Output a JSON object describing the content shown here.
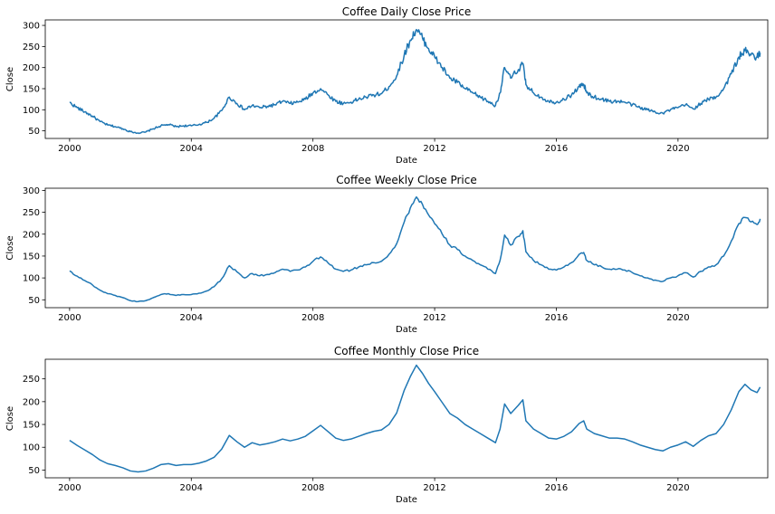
{
  "chart_data": [
    {
      "type": "line",
      "title": "Coffee Daily Close Price",
      "xlabel": "Date",
      "ylabel": "Close",
      "xlim": [
        1999.2,
        2022.95
      ],
      "ylim": [
        32,
        313
      ],
      "xticks": [
        2000,
        2004,
        2008,
        2012,
        2016,
        2020
      ],
      "xtick_labels": [
        "2000",
        "2004",
        "2008",
        "2012",
        "2016",
        "2020"
      ],
      "yticks": [
        50,
        100,
        150,
        200,
        250,
        300
      ],
      "ytick_labels": [
        "50",
        "100",
        "150",
        "200",
        "250",
        "300"
      ],
      "grid": false,
      "color": "#1f77b4",
      "series": [
        {
          "x": [
            2000.0,
            2000.25,
            2000.5,
            2000.75,
            2001.0,
            2001.25,
            2001.5,
            2001.75,
            2002.0,
            2002.25,
            2002.5,
            2002.75,
            2003.0,
            2003.25,
            2003.5,
            2003.75,
            2004.0,
            2004.25,
            2004.5,
            2004.75,
            2005.0,
            2005.25,
            2005.5,
            2005.75,
            2006.0,
            2006.25,
            2006.5,
            2006.75,
            2007.0,
            2007.25,
            2007.5,
            2007.75,
            2008.0,
            2008.25,
            2008.5,
            2008.75,
            2009.0,
            2009.25,
            2009.5,
            2009.75,
            2010.0,
            2010.25,
            2010.5,
            2010.75,
            2011.0,
            2011.2,
            2011.4,
            2011.6,
            2011.8,
            2012.0,
            2012.25,
            2012.5,
            2012.75,
            2013.0,
            2013.25,
            2013.5,
            2013.75,
            2014.0,
            2014.15,
            2014.3,
            2014.5,
            2014.75,
            2014.9,
            2015.0,
            2015.25,
            2015.5,
            2015.75,
            2016.0,
            2016.25,
            2016.5,
            2016.75,
            2016.9,
            2017.0,
            2017.25,
            2017.5,
            2017.75,
            2018.0,
            2018.25,
            2018.5,
            2018.75,
            2019.0,
            2019.25,
            2019.5,
            2019.75,
            2020.0,
            2020.25,
            2020.5,
            2020.75,
            2021.0,
            2021.25,
            2021.5,
            2021.75,
            2022.0,
            2022.2,
            2022.4,
            2022.6,
            2022.7
          ],
          "values": [
            117,
            105,
            95,
            85,
            72,
            64,
            60,
            55,
            48,
            45,
            47,
            55,
            62,
            65,
            60,
            62,
            62,
            65,
            70,
            80,
            98,
            130,
            115,
            100,
            110,
            105,
            108,
            112,
            120,
            115,
            118,
            125,
            140,
            150,
            135,
            120,
            115,
            118,
            125,
            130,
            135,
            138,
            155,
            180,
            230,
            265,
            290,
            270,
            245,
            225,
            200,
            175,
            165,
            150,
            140,
            130,
            120,
            110,
            140,
            200,
            175,
            195,
            210,
            160,
            140,
            130,
            120,
            118,
            125,
            135,
            155,
            160,
            140,
            130,
            125,
            120,
            120,
            118,
            112,
            105,
            100,
            95,
            92,
            100,
            105,
            112,
            102,
            115,
            125,
            130,
            150,
            185,
            225,
            240,
            230,
            225,
            235
          ]
        }
      ]
    },
    {
      "type": "line",
      "title": "Coffee Weekly Close Price",
      "xlabel": "Date",
      "ylabel": "Close",
      "xlim": [
        1999.2,
        2022.95
      ],
      "ylim": [
        32,
        305
      ],
      "xticks": [
        2000,
        2004,
        2008,
        2012,
        2016,
        2020
      ],
      "xtick_labels": [
        "2000",
        "2004",
        "2008",
        "2012",
        "2016",
        "2020"
      ],
      "yticks": [
        50,
        100,
        150,
        200,
        250,
        300
      ],
      "ytick_labels": [
        "50",
        "100",
        "150",
        "200",
        "250",
        "300"
      ],
      "grid": false,
      "color": "#1f77b4",
      "series": [
        {
          "x": [
            2000.0,
            2000.25,
            2000.5,
            2000.75,
            2001.0,
            2001.25,
            2001.5,
            2001.75,
            2002.0,
            2002.25,
            2002.5,
            2002.75,
            2003.0,
            2003.25,
            2003.5,
            2003.75,
            2004.0,
            2004.25,
            2004.5,
            2004.75,
            2005.0,
            2005.25,
            2005.5,
            2005.75,
            2006.0,
            2006.25,
            2006.5,
            2006.75,
            2007.0,
            2007.25,
            2007.5,
            2007.75,
            2008.0,
            2008.25,
            2008.5,
            2008.75,
            2009.0,
            2009.25,
            2009.5,
            2009.75,
            2010.0,
            2010.25,
            2010.5,
            2010.75,
            2011.0,
            2011.2,
            2011.4,
            2011.6,
            2011.8,
            2012.0,
            2012.25,
            2012.5,
            2012.75,
            2013.0,
            2013.25,
            2013.5,
            2013.75,
            2014.0,
            2014.15,
            2014.3,
            2014.5,
            2014.75,
            2014.9,
            2015.0,
            2015.25,
            2015.5,
            2015.75,
            2016.0,
            2016.25,
            2016.5,
            2016.75,
            2016.9,
            2017.0,
            2017.25,
            2017.5,
            2017.75,
            2018.0,
            2018.25,
            2018.5,
            2018.75,
            2019.0,
            2019.25,
            2019.5,
            2019.75,
            2020.0,
            2020.25,
            2020.5,
            2020.75,
            2021.0,
            2021.25,
            2021.5,
            2021.75,
            2022.0,
            2022.2,
            2022.4,
            2022.6,
            2022.7
          ],
          "values": [
            116,
            104,
            94,
            84,
            72,
            64,
            60,
            55,
            48,
            46,
            48,
            55,
            62,
            64,
            60,
            62,
            62,
            65,
            70,
            80,
            98,
            128,
            114,
            100,
            110,
            105,
            108,
            112,
            120,
            115,
            118,
            125,
            138,
            148,
            134,
            120,
            115,
            118,
            125,
            130,
            135,
            138,
            154,
            178,
            228,
            260,
            285,
            268,
            244,
            224,
            200,
            175,
            165,
            150,
            140,
            130,
            120,
            110,
            140,
            198,
            175,
            195,
            208,
            160,
            140,
            130,
            120,
            118,
            125,
            135,
            154,
            158,
            140,
            130,
            125,
            120,
            120,
            118,
            112,
            105,
            100,
            95,
            92,
            100,
            105,
            112,
            102,
            115,
            125,
            130,
            150,
            184,
            224,
            238,
            228,
            222,
            235
          ]
        }
      ]
    },
    {
      "type": "line",
      "title": "Coffee Monthly Close Price",
      "xlabel": "Date",
      "ylabel": "Close",
      "xlim": [
        1999.2,
        2022.95
      ],
      "ylim": [
        33,
        293
      ],
      "xticks": [
        2000,
        2004,
        2008,
        2012,
        2016,
        2020
      ],
      "xtick_labels": [
        "2000",
        "2004",
        "2008",
        "2012",
        "2016",
        "2020"
      ],
      "yticks": [
        50,
        100,
        150,
        200,
        250
      ],
      "ytick_labels": [
        "50",
        "100",
        "150",
        "200",
        "250"
      ],
      "grid": false,
      "color": "#1f77b4",
      "series": [
        {
          "x": [
            2000.0,
            2000.25,
            2000.5,
            2000.75,
            2001.0,
            2001.25,
            2001.5,
            2001.75,
            2002.0,
            2002.25,
            2002.5,
            2002.75,
            2003.0,
            2003.25,
            2003.5,
            2003.75,
            2004.0,
            2004.25,
            2004.5,
            2004.75,
            2005.0,
            2005.25,
            2005.5,
            2005.75,
            2006.0,
            2006.25,
            2006.5,
            2006.75,
            2007.0,
            2007.25,
            2007.5,
            2007.75,
            2008.0,
            2008.25,
            2008.5,
            2008.75,
            2009.0,
            2009.25,
            2009.5,
            2009.75,
            2010.0,
            2010.25,
            2010.5,
            2010.75,
            2011.0,
            2011.2,
            2011.4,
            2011.6,
            2011.8,
            2012.0,
            2012.25,
            2012.5,
            2012.75,
            2013.0,
            2013.25,
            2013.5,
            2013.75,
            2014.0,
            2014.15,
            2014.3,
            2014.5,
            2014.75,
            2014.9,
            2015.0,
            2015.25,
            2015.5,
            2015.75,
            2016.0,
            2016.25,
            2016.5,
            2016.75,
            2016.9,
            2017.0,
            2017.25,
            2017.5,
            2017.75,
            2018.0,
            2018.25,
            2018.5,
            2018.75,
            2019.0,
            2019.25,
            2019.5,
            2019.75,
            2020.0,
            2020.25,
            2020.5,
            2020.75,
            2021.0,
            2021.25,
            2021.5,
            2021.75,
            2022.0,
            2022.2,
            2022.4,
            2022.6,
            2022.7
          ],
          "values": [
            115,
            104,
            94,
            84,
            72,
            64,
            60,
            55,
            48,
            46,
            48,
            54,
            62,
            64,
            60,
            62,
            62,
            65,
            70,
            78,
            96,
            126,
            112,
            100,
            110,
            105,
            108,
            112,
            118,
            114,
            118,
            124,
            136,
            148,
            134,
            120,
            115,
            118,
            124,
            130,
            135,
            138,
            150,
            175,
            225,
            255,
            280,
            262,
            240,
            222,
            198,
            174,
            164,
            150,
            140,
            130,
            120,
            110,
            140,
            195,
            174,
            192,
            204,
            158,
            140,
            130,
            120,
            118,
            124,
            134,
            152,
            158,
            140,
            130,
            125,
            120,
            120,
            118,
            112,
            105,
            100,
            95,
            92,
            100,
            105,
            112,
            102,
            115,
            125,
            130,
            150,
            182,
            222,
            238,
            226,
            220,
            232
          ]
        }
      ]
    }
  ]
}
